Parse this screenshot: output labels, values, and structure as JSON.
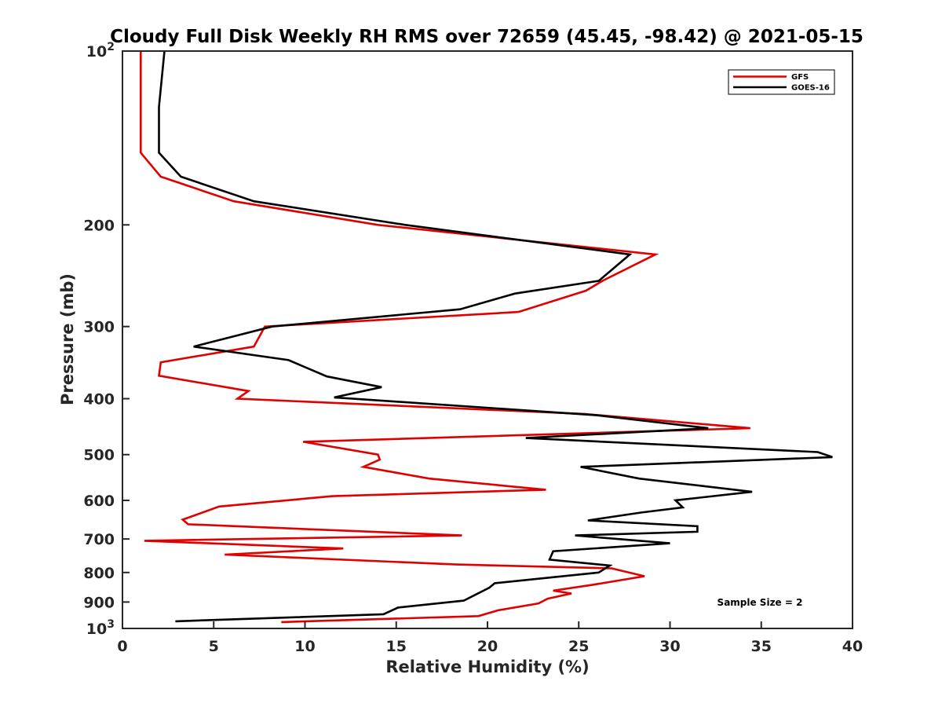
{
  "chart_data": {
    "type": "line",
    "title": "Cloudy Full Disk Weekly RH RMS over 72659 (45.45, -98.42) @ 2021-05-15",
    "xlabel": "Relative Humidity (%)",
    "ylabel": "Pressure (mb)",
    "xlim": [
      0,
      40
    ],
    "ylim": [
      100,
      1000
    ],
    "yscale": "log",
    "y_reversed": true,
    "x_ticks": [
      0,
      5,
      10,
      15,
      20,
      25,
      30,
      35,
      40
    ],
    "x_tick_labels": [
      "0",
      "5",
      "10",
      "15",
      "20",
      "25",
      "30",
      "35",
      "40"
    ],
    "y_ticks": [
      100,
      200,
      300,
      400,
      500,
      600,
      700,
      800,
      900,
      1000
    ],
    "y_tick_labels": [
      {
        "base": "10",
        "exp": "2"
      },
      {
        "base": "200",
        "exp": ""
      },
      {
        "base": "300",
        "exp": ""
      },
      {
        "base": "400",
        "exp": ""
      },
      {
        "base": "500",
        "exp": ""
      },
      {
        "base": "600",
        "exp": ""
      },
      {
        "base": "700",
        "exp": ""
      },
      {
        "base": "800",
        "exp": ""
      },
      {
        "base": "900",
        "exp": ""
      },
      {
        "base": "10",
        "exp": "3"
      }
    ],
    "grid": false,
    "legend_position": "top-right",
    "annotation": "Sample Size = 2",
    "series": [
      {
        "name": "GFS",
        "color": "#e00000",
        "points": [
          {
            "x": 1.0,
            "p": 100
          },
          {
            "x": 1.0,
            "p": 125
          },
          {
            "x": 1.0,
            "p": 150
          },
          {
            "x": 2.1,
            "p": 165
          },
          {
            "x": 6.1,
            "p": 182
          },
          {
            "x": 14.0,
            "p": 200
          },
          {
            "x": 29.2,
            "p": 225
          },
          {
            "x": 26.3,
            "p": 250
          },
          {
            "x": 25.4,
            "p": 260
          },
          {
            "x": 21.7,
            "p": 283
          },
          {
            "x": 7.8,
            "p": 300
          },
          {
            "x": 7.2,
            "p": 325
          },
          {
            "x": 2.1,
            "p": 346
          },
          {
            "x": 2.0,
            "p": 365
          },
          {
            "x": 6.9,
            "p": 388
          },
          {
            "x": 6.3,
            "p": 400
          },
          {
            "x": 25.3,
            "p": 425
          },
          {
            "x": 34.4,
            "p": 450
          },
          {
            "x": 9.9,
            "p": 475
          },
          {
            "x": 14.0,
            "p": 500
          },
          {
            "x": 14.1,
            "p": 510
          },
          {
            "x": 13.2,
            "p": 525
          },
          {
            "x": 16.8,
            "p": 550
          },
          {
            "x": 23.2,
            "p": 575
          },
          {
            "x": 11.5,
            "p": 590
          },
          {
            "x": 5.3,
            "p": 615
          },
          {
            "x": 3.3,
            "p": 648
          },
          {
            "x": 3.6,
            "p": 660
          },
          {
            "x": 18.6,
            "p": 690
          },
          {
            "x": 1.2,
            "p": 705
          },
          {
            "x": 12.1,
            "p": 727
          },
          {
            "x": 5.6,
            "p": 745
          },
          {
            "x": 18.3,
            "p": 775
          },
          {
            "x": 26.8,
            "p": 787
          },
          {
            "x": 28.6,
            "p": 812
          },
          {
            "x": 25.8,
            "p": 840
          },
          {
            "x": 23.6,
            "p": 860
          },
          {
            "x": 24.6,
            "p": 870
          },
          {
            "x": 23.3,
            "p": 888
          },
          {
            "x": 22.8,
            "p": 905
          },
          {
            "x": 20.6,
            "p": 930
          },
          {
            "x": 19.5,
            "p": 952
          },
          {
            "x": 8.7,
            "p": 975
          }
        ]
      },
      {
        "name": "GOES-16",
        "color": "#000000",
        "points": [
          {
            "x": 2.3,
            "p": 100
          },
          {
            "x": 2.0,
            "p": 125
          },
          {
            "x": 2.0,
            "p": 150
          },
          {
            "x": 3.2,
            "p": 165
          },
          {
            "x": 7.2,
            "p": 182
          },
          {
            "x": 15.5,
            "p": 200
          },
          {
            "x": 27.8,
            "p": 225
          },
          {
            "x": 26.1,
            "p": 250
          },
          {
            "x": 21.5,
            "p": 263
          },
          {
            "x": 18.5,
            "p": 280
          },
          {
            "x": 8.2,
            "p": 300
          },
          {
            "x": 3.9,
            "p": 325
          },
          {
            "x": 9.1,
            "p": 343
          },
          {
            "x": 11.2,
            "p": 366
          },
          {
            "x": 14.2,
            "p": 382
          },
          {
            "x": 11.6,
            "p": 398
          },
          {
            "x": 25.9,
            "p": 427
          },
          {
            "x": 32.1,
            "p": 450
          },
          {
            "x": 22.1,
            "p": 468
          },
          {
            "x": 38.1,
            "p": 495
          },
          {
            "x": 38.9,
            "p": 505
          },
          {
            "x": 25.1,
            "p": 525
          },
          {
            "x": 28.3,
            "p": 550
          },
          {
            "x": 34.5,
            "p": 580
          },
          {
            "x": 30.3,
            "p": 600
          },
          {
            "x": 30.7,
            "p": 617
          },
          {
            "x": 28.4,
            "p": 630
          },
          {
            "x": 25.5,
            "p": 650
          },
          {
            "x": 31.5,
            "p": 665
          },
          {
            "x": 31.5,
            "p": 680
          },
          {
            "x": 24.8,
            "p": 690
          },
          {
            "x": 30.0,
            "p": 712
          },
          {
            "x": 23.6,
            "p": 735
          },
          {
            "x": 23.4,
            "p": 760
          },
          {
            "x": 26.7,
            "p": 778
          },
          {
            "x": 26.1,
            "p": 800
          },
          {
            "x": 20.4,
            "p": 835
          },
          {
            "x": 20.1,
            "p": 850
          },
          {
            "x": 18.7,
            "p": 895
          },
          {
            "x": 15.1,
            "p": 920
          },
          {
            "x": 14.3,
            "p": 945
          },
          {
            "x": 2.9,
            "p": 972
          }
        ]
      }
    ]
  }
}
